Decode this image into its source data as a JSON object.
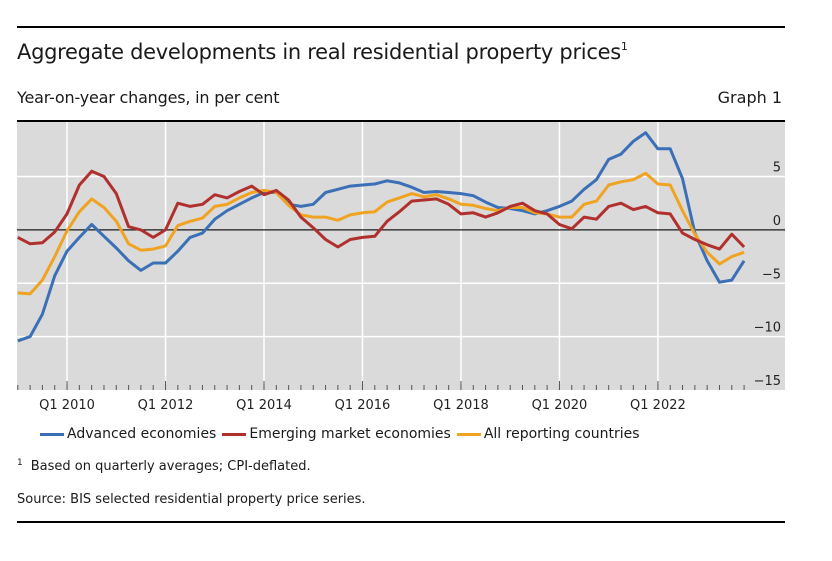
{
  "header": {
    "title": "Aggregate developments in real residential property prices",
    "title_footnote_mark": "1",
    "subtitle": "Year-on-year changes, in per cent",
    "graph_number": "Graph 1"
  },
  "footnotes": {
    "note_mark": "1",
    "note_text": "Based on quarterly averages; CPI-deflated.",
    "source": "Source: BIS selected residential property price series."
  },
  "chart_data": {
    "type": "line",
    "title": "Aggregate developments in real residential property prices",
    "subtitle": "Year-on-year changes, in per cent",
    "xlabel": "",
    "ylabel": "",
    "frequency": "quarterly",
    "x_start": "Q1 2009",
    "x_end": "Q4 2023",
    "x_tick_labels": [
      "Q1 2010",
      "Q1 2012",
      "Q1 2014",
      "Q1 2016",
      "Q1 2018",
      "Q1 2020",
      "Q1 2022"
    ],
    "y_ticks": [
      5,
      0,
      -5,
      -10,
      -15
    ],
    "y_tick_labels": [
      "5",
      "0",
      "−5",
      "−10",
      "−15"
    ],
    "ylim": [
      -15,
      10.2
    ],
    "y_axis_side": "right",
    "grid": true,
    "zero_line": true,
    "legend_position": "bottom",
    "series": [
      {
        "name": "Advanced economies",
        "color": "#3b6fb6",
        "values": [
          -10.4,
          -10.0,
          -7.9,
          -4.3,
          -2.0,
          -0.7,
          0.5,
          -0.6,
          -1.7,
          -2.9,
          -3.8,
          -3.1,
          -3.1,
          -2.0,
          -0.7,
          -0.3,
          1.0,
          1.8,
          2.4,
          3.0,
          3.5,
          3.5,
          2.4,
          2.2,
          2.4,
          3.5,
          3.8,
          4.1,
          4.2,
          4.3,
          4.6,
          4.4,
          4.0,
          3.5,
          3.6,
          3.5,
          3.4,
          3.2,
          2.6,
          2.1,
          2.0,
          1.8,
          1.5,
          1.8,
          2.2,
          2.7,
          3.8,
          4.7,
          6.6,
          7.1,
          8.3,
          9.1,
          7.6,
          7.6,
          4.8,
          -0.3,
          -2.9,
          -4.9,
          -4.7,
          -2.9
        ]
      },
      {
        "name": "Emerging market economies",
        "color": "#b0302e",
        "values": [
          -0.7,
          -1.3,
          -1.2,
          -0.2,
          1.5,
          4.2,
          5.5,
          5.0,
          3.4,
          0.3,
          0.0,
          -0.7,
          0.0,
          2.5,
          2.2,
          2.4,
          3.3,
          3.0,
          3.6,
          4.1,
          3.3,
          3.7,
          2.8,
          1.2,
          0.2,
          -0.9,
          -1.6,
          -0.9,
          -0.7,
          -0.6,
          0.8,
          1.7,
          2.7,
          2.8,
          2.9,
          2.4,
          1.5,
          1.6,
          1.2,
          1.6,
          2.2,
          2.5,
          1.8,
          1.5,
          0.5,
          0.1,
          1.2,
          1.0,
          2.2,
          2.5,
          1.9,
          2.2,
          1.6,
          1.5,
          -0.3,
          -0.9,
          -1.4,
          -1.8,
          -0.4,
          -1.6
        ]
      },
      {
        "name": "All reporting countries",
        "color": "#f0a321",
        "values": [
          -5.9,
          -6.0,
          -4.7,
          -2.5,
          -0.1,
          1.7,
          2.9,
          2.1,
          0.8,
          -1.3,
          -1.9,
          -1.8,
          -1.5,
          0.4,
          0.8,
          1.1,
          2.2,
          2.4,
          3.0,
          3.5,
          3.7,
          3.5,
          2.3,
          1.4,
          1.2,
          1.2,
          0.9,
          1.4,
          1.6,
          1.7,
          2.6,
          3.0,
          3.4,
          3.1,
          3.3,
          2.9,
          2.4,
          2.3,
          2.0,
          1.8,
          2.1,
          2.1,
          1.6,
          1.5,
          1.2,
          1.2,
          2.4,
          2.7,
          4.2,
          4.5,
          4.7,
          5.3,
          4.3,
          4.2,
          1.8,
          -0.4,
          -2.1,
          -3.2,
          -2.5,
          -2.1
        ]
      }
    ]
  }
}
